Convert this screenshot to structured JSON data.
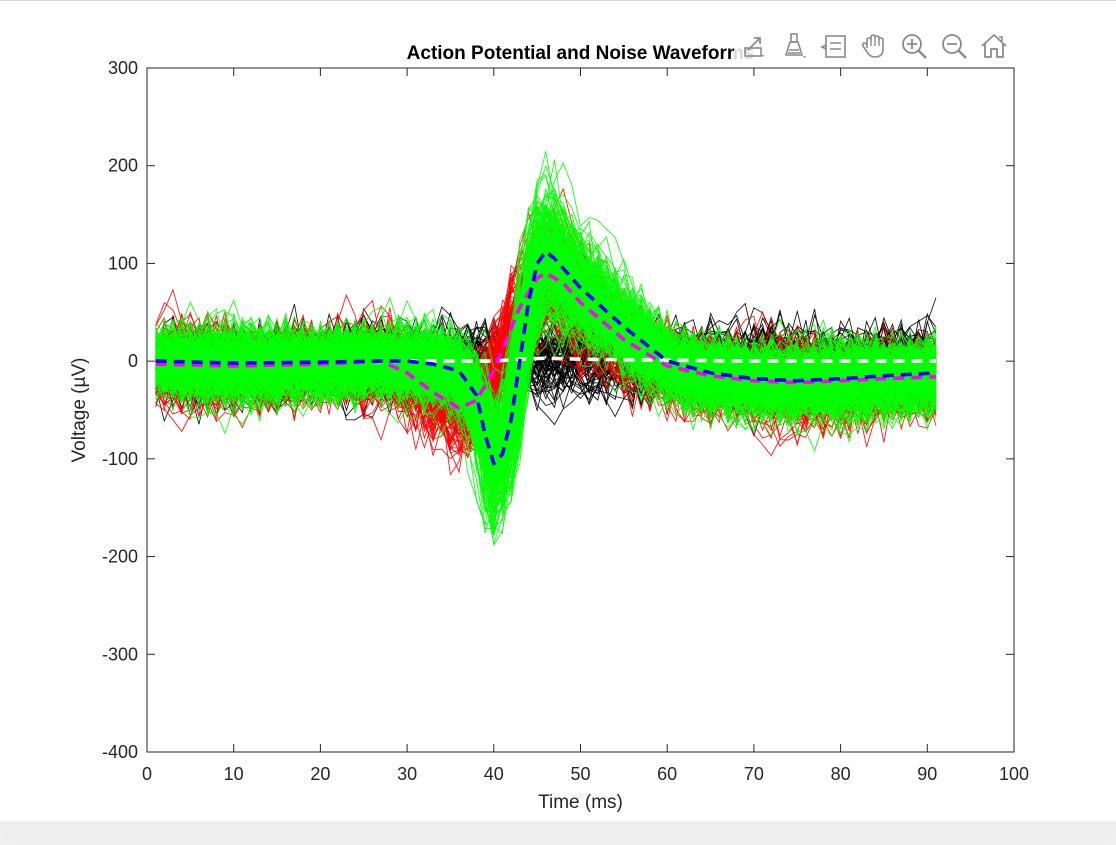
{
  "window": {
    "background": "#f0f0f0"
  },
  "toolbar": {
    "buttons": [
      {
        "name": "export-icon",
        "tooltip": "Export"
      },
      {
        "name": "brush-icon",
        "tooltip": "Brush"
      },
      {
        "name": "data-tips-icon",
        "tooltip": "Data Tips"
      },
      {
        "name": "pan-icon",
        "tooltip": "Pan"
      },
      {
        "name": "zoom-in-icon",
        "tooltip": "Zoom In"
      },
      {
        "name": "zoom-out-icon",
        "tooltip": "Zoom Out"
      },
      {
        "name": "home-icon",
        "tooltip": "Restore View"
      }
    ]
  },
  "chart_data": {
    "type": "line",
    "title": "Action Potential and Noise Waveforms",
    "xlabel": "Time (ms)",
    "ylabel": "Voltage (µV)",
    "xlim": [
      0,
      100
    ],
    "ylim": [
      -400,
      300
    ],
    "xticks": [
      0,
      10,
      20,
      30,
      40,
      50,
      60,
      70,
      80,
      90,
      100
    ],
    "yticks": [
      -400,
      -300,
      -200,
      -100,
      0,
      100,
      200,
      300
    ],
    "grid": false,
    "colors": {
      "noise_traces": "#000000",
      "cluster1_traces": "#ff0000",
      "cluster2_traces": "#00ff00",
      "noise_mean": "#ffffff",
      "cluster1_mean": "#ff00ff",
      "cluster2_mean": "#0000ff"
    },
    "series": [
      {
        "style": "dashed",
        "color": "#ffffff",
        "x": [
          1,
          10,
          20,
          30,
          35,
          40,
          43,
          46,
          50,
          60,
          70,
          80,
          91
        ],
        "y": [
          -2,
          -2,
          -1,
          0,
          0,
          0,
          2,
          3,
          2,
          1,
          0,
          0,
          0
        ]
      },
      {
        "style": "dashed",
        "color": "#ff00ff",
        "x": [
          1,
          10,
          20,
          27,
          30,
          33,
          36,
          38,
          40,
          43,
          45,
          46,
          48,
          50,
          55,
          60,
          65,
          70,
          75,
          80,
          85,
          91
        ],
        "y": [
          -3,
          -5,
          -3,
          0,
          -12,
          -32,
          -48,
          -40,
          -10,
          55,
          85,
          90,
          80,
          60,
          22,
          -5,
          -15,
          -20,
          -22,
          -20,
          -18,
          -16
        ]
      },
      {
        "style": "dashed",
        "color": "#0000ff",
        "x": [
          1,
          10,
          20,
          27,
          30,
          33,
          36,
          38,
          39,
          40,
          41,
          42,
          43,
          44,
          45,
          46,
          47,
          50,
          55,
          60,
          65,
          70,
          75,
          80,
          85,
          91
        ],
        "y": [
          0,
          -2,
          -1,
          0,
          0,
          -3,
          -10,
          -35,
          -75,
          -105,
          -95,
          -60,
          0,
          60,
          100,
          112,
          105,
          75,
          35,
          0,
          -12,
          -18,
          -20,
          -18,
          -15,
          -12
        ]
      }
    ]
  }
}
